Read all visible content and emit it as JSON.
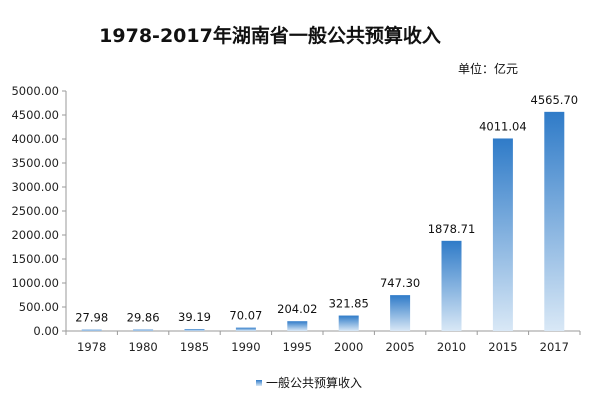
{
  "chart_data": {
    "type": "bar",
    "title": "1978-2017年湖南省一般公共预算收入",
    "unit_label": "单位：亿元",
    "categories": [
      "1978",
      "1980",
      "1985",
      "1990",
      "1995",
      "2000",
      "2005",
      "2010",
      "2015",
      "2017"
    ],
    "series": [
      {
        "name": "一般公共预算收入",
        "values": [
          27.98,
          29.86,
          39.19,
          70.07,
          204.02,
          321.85,
          747.3,
          1878.71,
          4011.04,
          4565.7
        ]
      }
    ],
    "value_labels": [
      "27.98",
      "29.86",
      "39.19",
      "70.07",
      "204.02",
      "321.85",
      "747.30",
      "1878.71",
      "4011.04",
      "4565.70"
    ],
    "y_ticks": [
      "0.00",
      "500.00",
      "1000.00",
      "1500.00",
      "2000.00",
      "2500.00",
      "3000.00",
      "3500.00",
      "4000.00",
      "4500.00",
      "5000.00"
    ],
    "ylim": [
      0,
      5000
    ],
    "xlabel": "",
    "ylabel": "",
    "grid": false,
    "legend_position": "bottom",
    "colors": {
      "bar_top": "#2f7bc8",
      "bar_bottom": "#d9e8f6",
      "axis": "#9a9a9a"
    }
  }
}
